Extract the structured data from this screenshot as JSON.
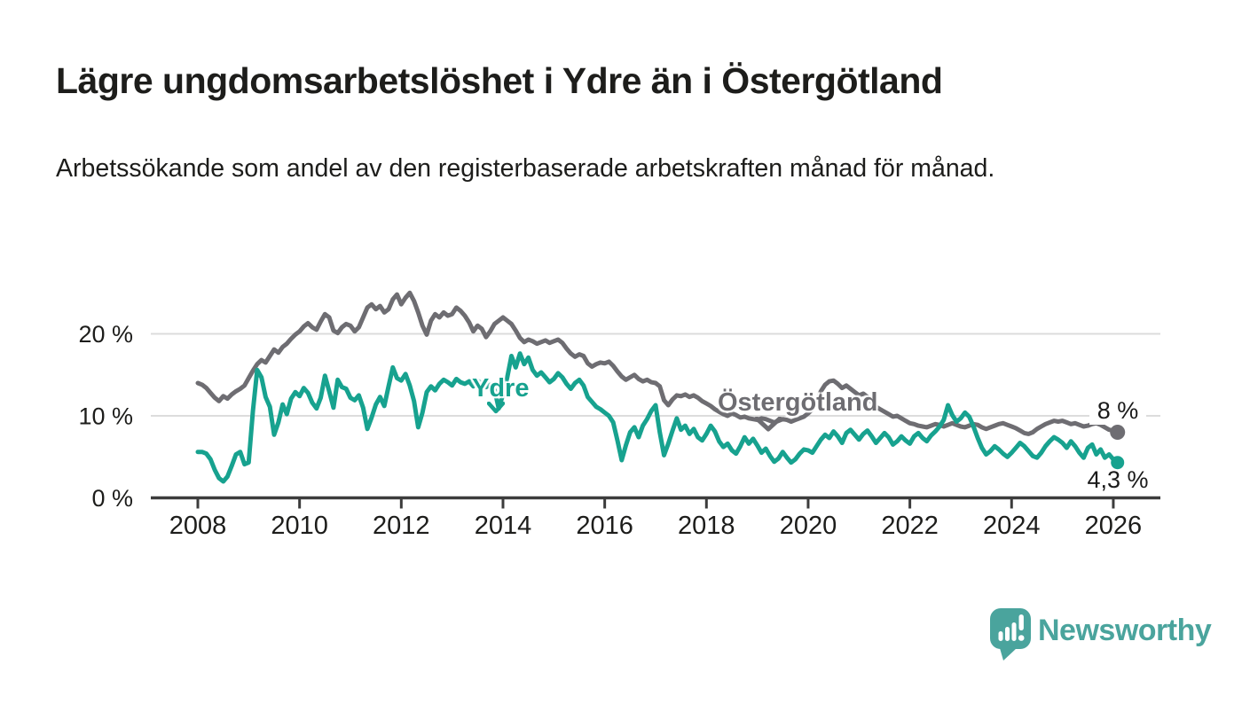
{
  "header": {
    "title": "Lägre ungdomsarbetslöshet i Ydre än i Östergötland",
    "subtitle": "Arbetssökande som andel av den registerbaserade arbetskraften månad för månad."
  },
  "chart_data": {
    "type": "line",
    "title": "Lägre ungdomsarbetslöshet i Ydre än i Östergötland",
    "subtitle": "Arbetssökande som andel av den registerbaserade arbetskraften månad för månad.",
    "x_unit": "month",
    "x_start_year": 2008,
    "x_end": "2026-02",
    "x_axis": {
      "ticks": [
        2008,
        2010,
        2012,
        2014,
        2016,
        2018,
        2020,
        2022,
        2024,
        2026
      ],
      "labels": [
        "2008",
        "2010",
        "2012",
        "2014",
        "2016",
        "2018",
        "2020",
        "2022",
        "2024",
        "2026"
      ]
    },
    "y_axis": {
      "ticks": [
        0,
        10,
        20
      ],
      "labels": [
        "0 %",
        "10 %",
        "20 %"
      ],
      "ylim": [
        0,
        26
      ]
    },
    "grid": "horizontal",
    "legend_position": "inline-labels",
    "series": [
      {
        "name": "Östergötland",
        "color": "#6e6d72",
        "end_value": 8,
        "end_label": "8 %",
        "values": [
          14.0,
          13.8,
          13.4,
          12.8,
          12.2,
          11.8,
          12.4,
          12.1,
          12.6,
          13.0,
          13.3,
          13.7,
          14.6,
          15.5,
          16.3,
          16.8,
          16.5,
          17.3,
          18.1,
          17.7,
          18.4,
          18.8,
          19.4,
          19.9,
          20.3,
          20.9,
          21.3,
          20.8,
          20.5,
          21.5,
          22.4,
          22.0,
          20.4,
          20.1,
          20.8,
          21.2,
          21.0,
          20.3,
          20.8,
          22.0,
          23.2,
          23.6,
          23.0,
          23.4,
          22.6,
          23.0,
          24.2,
          24.8,
          23.6,
          24.4,
          25.0,
          24.0,
          22.6,
          21.0,
          19.9,
          21.6,
          22.4,
          22.0,
          22.6,
          22.2,
          22.4,
          23.2,
          22.8,
          22.2,
          21.4,
          20.3,
          21.0,
          20.6,
          19.6,
          20.3,
          21.2,
          21.6,
          22.0,
          21.6,
          21.2,
          20.4,
          19.5,
          19.0,
          19.3,
          19.1,
          18.8,
          19.0,
          19.2,
          18.9,
          19.1,
          19.3,
          18.9,
          18.2,
          17.6,
          17.2,
          17.5,
          17.3,
          16.4,
          16.0,
          16.3,
          16.5,
          16.4,
          16.6,
          16.1,
          15.4,
          14.8,
          14.4,
          14.7,
          15.0,
          14.5,
          14.2,
          14.4,
          14.1,
          14.0,
          13.6,
          11.9,
          11.3,
          12.0,
          12.5,
          12.4,
          12.6,
          12.3,
          12.5,
          12.2,
          11.8,
          11.5,
          11.2,
          10.8,
          10.5,
          10.2,
          10.0,
          10.3,
          10.1,
          9.8,
          9.9,
          9.7,
          9.6,
          9.5,
          9.7,
          9.6,
          9.4,
          9.2,
          9.4,
          9.6,
          9.5,
          9.3,
          9.5,
          9.7,
          9.9,
          10.3,
          10.8,
          11.6,
          13.0,
          13.8,
          14.2,
          14.3,
          13.9,
          13.4,
          13.7,
          13.3,
          12.9,
          12.5,
          12.7,
          12.3,
          11.7,
          11.1,
          10.8,
          10.5,
          10.2,
          9.9,
          10.0,
          9.7,
          9.4,
          9.1,
          9.0,
          8.8,
          8.7,
          8.6,
          8.8,
          9.0,
          8.9,
          8.7,
          8.9,
          9.1,
          8.9,
          8.7,
          8.6,
          8.8,
          9.0,
          8.9,
          8.6,
          8.4,
          8.6,
          8.8,
          9.0,
          9.1,
          8.9,
          8.7,
          8.5,
          8.2,
          7.9,
          7.8,
          8.0,
          8.4,
          8.7,
          9.0,
          9.2,
          9.4,
          9.3,
          9.4,
          9.2,
          9.0,
          9.1,
          8.9,
          8.7,
          8.8,
          9.0,
          9.1,
          8.9,
          8.6,
          8.3,
          8.2,
          8.0
        ]
      },
      {
        "name": "Ydre",
        "color": "#17a28f",
        "end_value": 4.3,
        "end_label": "4,3 %",
        "values": [
          5.6,
          5.6,
          5.4,
          4.7,
          3.4,
          2.4,
          2.0,
          2.6,
          3.9,
          5.3,
          5.6,
          4.1,
          4.3,
          10.6,
          15.6,
          14.7,
          12.3,
          11.1,
          7.7,
          9.2,
          11.4,
          10.2,
          12.1,
          12.9,
          12.4,
          13.4,
          12.8,
          11.6,
          10.9,
          12.2,
          14.9,
          13.0,
          11.0,
          14.4,
          13.5,
          13.3,
          12.2,
          11.9,
          12.5,
          11.0,
          8.4,
          9.8,
          11.4,
          12.3,
          11.2,
          13.6,
          15.9,
          14.6,
          14.3,
          15.1,
          13.7,
          11.8,
          8.6,
          10.4,
          12.9,
          13.6,
          13.1,
          13.9,
          14.4,
          14.1,
          13.7,
          14.5,
          14.1,
          13.9,
          14.2,
          13.6,
          14.3,
          13.9,
          13.5,
          13.8,
          13.2,
          10.9,
          12.6,
          14.7,
          17.3,
          15.9,
          17.6,
          16.3,
          17.1,
          15.6,
          14.9,
          15.3,
          14.7,
          14.1,
          14.5,
          15.2,
          14.7,
          13.9,
          13.3,
          14.0,
          14.4,
          13.7,
          12.3,
          11.7,
          11.1,
          10.8,
          10.4,
          10.0,
          9.2,
          7.0,
          4.6,
          6.4,
          8.0,
          8.6,
          7.4,
          8.8,
          9.6,
          10.6,
          11.3,
          8.0,
          5.2,
          6.6,
          8.2,
          9.7,
          8.3,
          8.8,
          7.8,
          8.4,
          7.4,
          7.0,
          7.8,
          8.8,
          8.1,
          6.9,
          6.2,
          6.6,
          5.8,
          5.4,
          6.3,
          7.4,
          6.6,
          7.2,
          6.4,
          5.5,
          6.0,
          5.1,
          4.4,
          4.8,
          5.6,
          4.9,
          4.3,
          4.7,
          5.4,
          5.9,
          5.8,
          5.5,
          6.3,
          7.1,
          7.7,
          7.3,
          8.1,
          7.5,
          6.7,
          7.9,
          8.3,
          7.7,
          7.1,
          7.8,
          8.2,
          7.5,
          6.7,
          7.3,
          7.9,
          7.4,
          6.5,
          6.9,
          7.5,
          7.0,
          6.6,
          7.5,
          7.9,
          7.3,
          6.9,
          7.6,
          8.1,
          8.7,
          9.5,
          11.3,
          10.1,
          9.3,
          9.7,
          10.4,
          9.9,
          8.7,
          7.3,
          6.1,
          5.3,
          5.7,
          6.3,
          5.9,
          5.4,
          5.0,
          5.5,
          6.1,
          6.7,
          6.3,
          5.7,
          5.1,
          4.9,
          5.5,
          6.3,
          6.9,
          7.4,
          7.1,
          6.7,
          6.1,
          6.9,
          6.3,
          5.5,
          4.9,
          6.1,
          6.5,
          5.3,
          5.9,
          4.9,
          5.3,
          4.7,
          4.3
        ]
      }
    ]
  },
  "colors": {
    "background": "#ffffff",
    "grid": "#dcdcdc",
    "axis": "#3c3c3c",
    "text": "#1d1d1b",
    "series_ostergotland": "#6e6d72",
    "series_ydre": "#17a28f",
    "brand": "#4aa49d"
  },
  "footer": {
    "brand": "Newsworthy",
    "logo_icon": "newsworthy-speech-bubble-barchart-icon"
  }
}
